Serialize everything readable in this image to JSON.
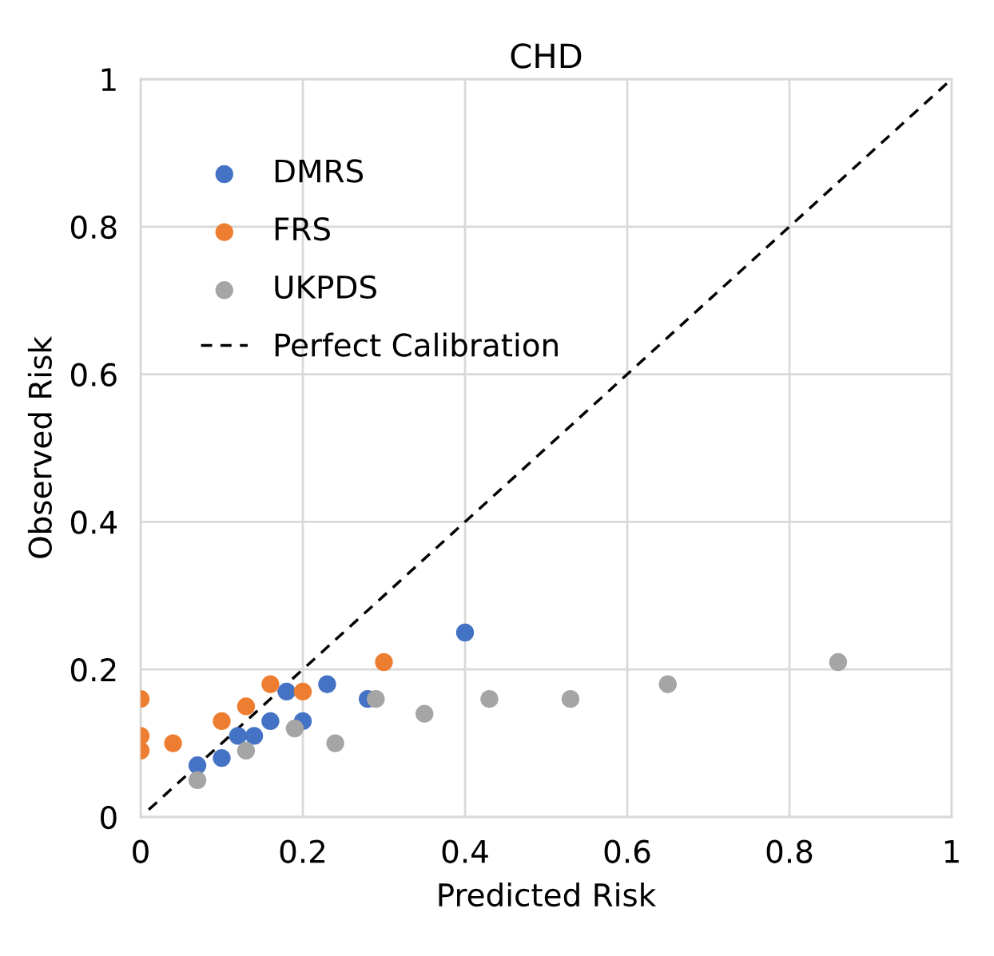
{
  "chart_data": {
    "type": "scatter",
    "title": "CHD",
    "xlabel": "Predicted Risk",
    "ylabel": "Observed Risk",
    "xlim": [
      0,
      1
    ],
    "ylim": [
      0,
      1
    ],
    "xticks": [
      0,
      0.2,
      0.4,
      0.6,
      0.8,
      1
    ],
    "yticks": [
      0,
      0.2,
      0.4,
      0.6,
      0.8,
      1
    ],
    "grid": true,
    "legend": "top left",
    "marker": "circle",
    "series": [
      {
        "name": "DMRS",
        "color": "#4472c4",
        "x": [
          0.07,
          0.1,
          0.12,
          0.14,
          0.16,
          0.18,
          0.2,
          0.23,
          0.28,
          0.4
        ],
        "values": [
          0.07,
          0.08,
          0.11,
          0.11,
          0.13,
          0.17,
          0.13,
          0.18,
          0.16,
          0.25
        ]
      },
      {
        "name": "FRS",
        "color": "#ed7d31",
        "x": [
          0,
          0,
          0,
          0.04,
          0.1,
          0.13,
          0.16,
          0.2,
          0.3
        ],
        "values": [
          0.16,
          0.11,
          0.09,
          0.1,
          0.13,
          0.15,
          0.18,
          0.17,
          0.21
        ]
      },
      {
        "name": "UKPDS",
        "color": "#a5a5a5",
        "x": [
          0.07,
          0.13,
          0.19,
          0.24,
          0.29,
          0.35,
          0.43,
          0.53,
          0.65,
          0.86
        ],
        "values": [
          0.05,
          0.09,
          0.12,
          0.1,
          0.16,
          0.14,
          0.16,
          0.16,
          0.18,
          0.21
        ]
      },
      {
        "name": "Perfect Calibration",
        "type": "line",
        "color": "#000000",
        "line_style": "dashed",
        "marker": "none",
        "x": [
          0.01,
          1
        ],
        "values": [
          0.01,
          1
        ]
      }
    ]
  }
}
